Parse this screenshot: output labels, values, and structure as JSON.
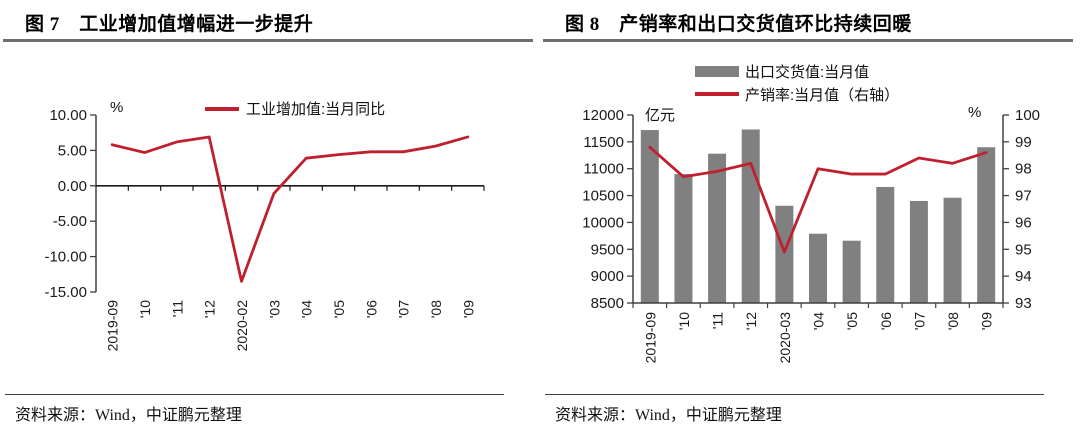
{
  "panels": [
    {
      "title": "图 7　工业增加值增幅进一步提升",
      "source": "资料来源：Wind，中证鹏元整理"
    },
    {
      "title": "图 8　产销率和出口交货值环比持续回暖",
      "source": "资料来源：Wind，中证鹏元整理"
    }
  ],
  "chart_data": [
    {
      "type": "line",
      "title": "图 7　工业增加值增幅进一步提升",
      "unit_label": "%",
      "legend": [
        {
          "label": "工业增加值:当月同比",
          "color": "#c0202e",
          "swatch": "line"
        }
      ],
      "legend_position": "top",
      "grid": false,
      "categories": [
        "2019-09",
        "'10",
        "'11",
        "'12",
        "2020-02",
        "'03",
        "'04",
        "'05",
        "'06",
        "'07",
        "'08",
        "'09"
      ],
      "values": [
        5.8,
        4.7,
        6.2,
        6.9,
        -13.5,
        -1.1,
        3.9,
        4.4,
        4.8,
        4.8,
        5.6,
        6.9
      ],
      "ylim": [
        -15,
        10
      ],
      "y_ticks": [
        "10.00",
        "5.00",
        "0.00",
        "-5.00",
        "-10.00",
        "-15.00"
      ],
      "y_tick_values": [
        10,
        5,
        0,
        -5,
        -10,
        -15
      ]
    },
    {
      "type": "bar+line",
      "title": "图 8　产销率和出口交货值环比持续回暖",
      "left_unit_label": "亿元",
      "right_unit_label": "%",
      "legend_position": "top",
      "grid": false,
      "categories": [
        "2019-09",
        "'10",
        "'11",
        "'12",
        "2020-03",
        "'04",
        "'05",
        "'06",
        "'07",
        "'08",
        "'09"
      ],
      "series": [
        {
          "name": "出口交货值:当月值",
          "type": "bar",
          "axis": "left",
          "color": "#808080",
          "values": [
            11720,
            10900,
            11280,
            11730,
            10310,
            9790,
            9660,
            10660,
            10400,
            10460,
            11400
          ]
        },
        {
          "name": "产销率:当月值（右轴）",
          "type": "line",
          "axis": "right",
          "color": "#c0202e",
          "values": [
            98.8,
            97.7,
            97.9,
            98.2,
            94.9,
            98.0,
            97.8,
            97.8,
            98.4,
            98.2,
            98.6
          ]
        }
      ],
      "left_ylim": [
        8500,
        12000
      ],
      "left_ticks": [
        "12000",
        "11500",
        "11000",
        "10500",
        "10000",
        "9500",
        "9000",
        "8500"
      ],
      "left_tick_values": [
        12000,
        11500,
        11000,
        10500,
        10000,
        9500,
        9000,
        8500
      ],
      "right_ylim": [
        93,
        100
      ],
      "right_ticks": [
        "100",
        "99",
        "98",
        "97",
        "96",
        "95",
        "94",
        "93"
      ],
      "right_tick_values": [
        100,
        99,
        98,
        97,
        96,
        95,
        94,
        93
      ]
    }
  ]
}
